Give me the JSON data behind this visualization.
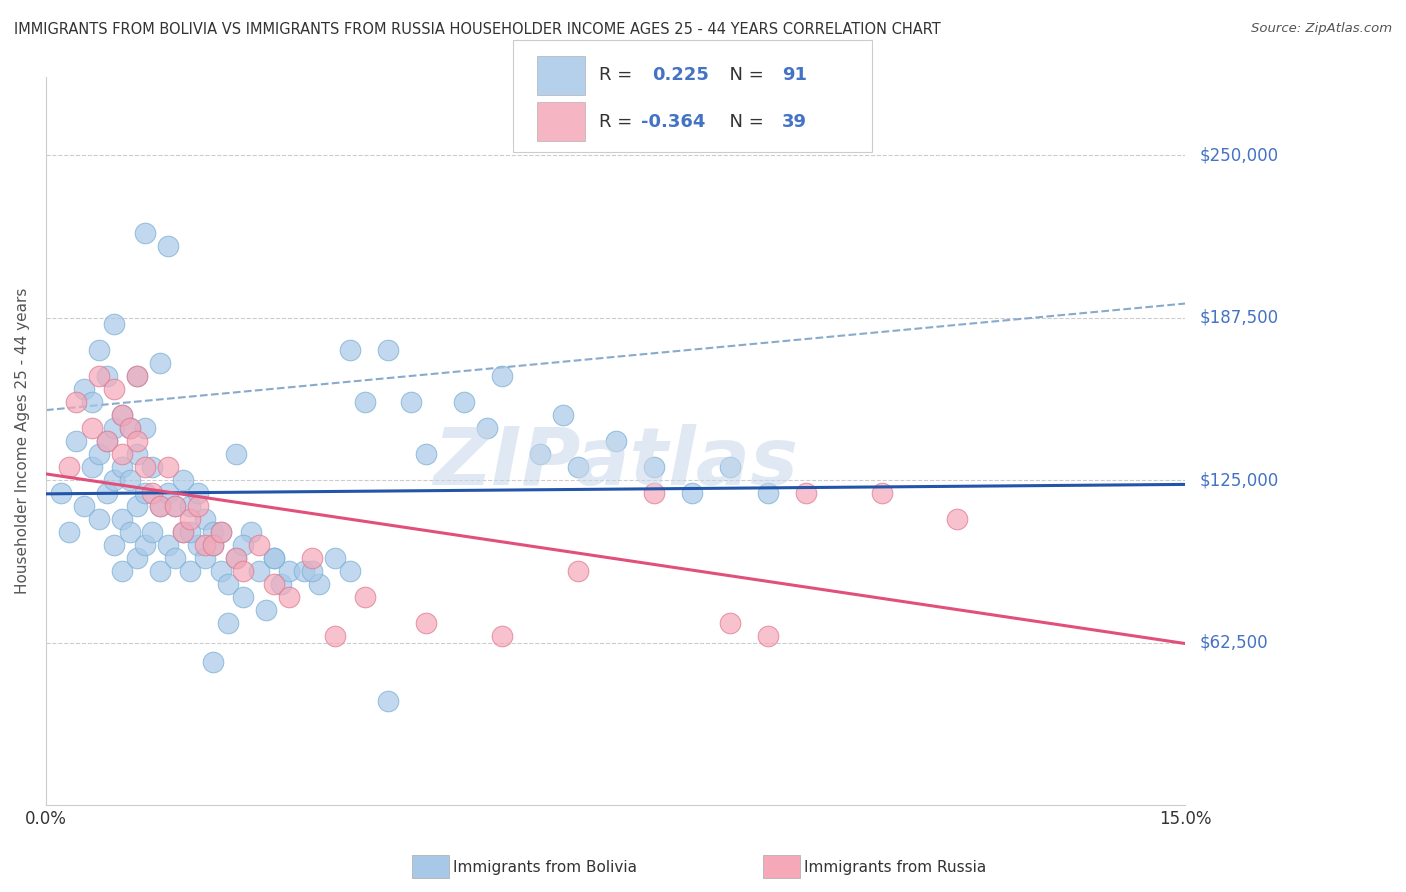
{
  "title": "IMMIGRANTS FROM BOLIVIA VS IMMIGRANTS FROM RUSSIA HOUSEHOLDER INCOME AGES 25 - 44 YEARS CORRELATION CHART",
  "source": "Source: ZipAtlas.com",
  "ylabel": "Householder Income Ages 25 - 44 years",
  "xlim": [
    0.0,
    0.15
  ],
  "ylim": [
    0,
    280000
  ],
  "bolivia_color": "#a8c8e8",
  "bolivia_edge": "#7aafd4",
  "russia_color": "#f4a8b8",
  "russia_edge": "#e07890",
  "reg_bolivia_color": "#2255aa",
  "reg_russia_color": "#e0507a",
  "dash_color": "#88aacc",
  "bolivia_R": 0.225,
  "bolivia_N": 91,
  "russia_R": -0.364,
  "russia_N": 39,
  "xticks": [
    0.0,
    0.03,
    0.06,
    0.09,
    0.12,
    0.15
  ],
  "yticks": [
    0,
    62500,
    125000,
    187500,
    250000
  ],
  "ytick_labels": [
    "",
    "$62,500",
    "$125,000",
    "$187,500",
    "$250,000"
  ],
  "watermark": "ZIPatlas",
  "label_color": "#4472c4",
  "bolivia_x": [
    0.002,
    0.003,
    0.004,
    0.005,
    0.005,
    0.006,
    0.006,
    0.007,
    0.007,
    0.007,
    0.008,
    0.008,
    0.008,
    0.009,
    0.009,
    0.009,
    0.009,
    0.01,
    0.01,
    0.01,
    0.01,
    0.011,
    0.011,
    0.011,
    0.012,
    0.012,
    0.012,
    0.012,
    0.013,
    0.013,
    0.013,
    0.014,
    0.014,
    0.015,
    0.015,
    0.015,
    0.016,
    0.016,
    0.017,
    0.017,
    0.018,
    0.018,
    0.019,
    0.019,
    0.02,
    0.02,
    0.021,
    0.021,
    0.022,
    0.022,
    0.023,
    0.024,
    0.024,
    0.025,
    0.026,
    0.027,
    0.028,
    0.029,
    0.03,
    0.031,
    0.032,
    0.034,
    0.036,
    0.038,
    0.04,
    0.042,
    0.045,
    0.048,
    0.05,
    0.055,
    0.058,
    0.06,
    0.065,
    0.068,
    0.07,
    0.075,
    0.08,
    0.085,
    0.09,
    0.095,
    0.022,
    0.025,
    0.013,
    0.016,
    0.019,
    0.023,
    0.026,
    0.03,
    0.035,
    0.04,
    0.045
  ],
  "bolivia_y": [
    120000,
    105000,
    140000,
    115000,
    160000,
    130000,
    155000,
    110000,
    135000,
    175000,
    120000,
    140000,
    165000,
    100000,
    125000,
    145000,
    185000,
    110000,
    130000,
    150000,
    90000,
    105000,
    125000,
    145000,
    95000,
    115000,
    135000,
    165000,
    100000,
    120000,
    145000,
    105000,
    130000,
    90000,
    115000,
    170000,
    100000,
    120000,
    95000,
    115000,
    105000,
    125000,
    90000,
    115000,
    100000,
    120000,
    95000,
    110000,
    55000,
    100000,
    90000,
    85000,
    70000,
    95000,
    80000,
    105000,
    90000,
    75000,
    95000,
    85000,
    90000,
    90000,
    85000,
    95000,
    175000,
    155000,
    175000,
    155000,
    135000,
    155000,
    145000,
    165000,
    135000,
    150000,
    130000,
    140000,
    130000,
    120000,
    130000,
    120000,
    105000,
    135000,
    220000,
    215000,
    105000,
    105000,
    100000,
    95000,
    90000,
    90000,
    40000
  ],
  "russia_x": [
    0.003,
    0.004,
    0.006,
    0.007,
    0.008,
    0.009,
    0.01,
    0.01,
    0.011,
    0.012,
    0.012,
    0.013,
    0.014,
    0.015,
    0.016,
    0.017,
    0.018,
    0.019,
    0.02,
    0.021,
    0.022,
    0.023,
    0.025,
    0.026,
    0.028,
    0.03,
    0.032,
    0.035,
    0.038,
    0.042,
    0.05,
    0.06,
    0.07,
    0.09,
    0.1,
    0.11,
    0.12,
    0.08,
    0.095
  ],
  "russia_y": [
    130000,
    155000,
    145000,
    165000,
    140000,
    160000,
    150000,
    135000,
    145000,
    140000,
    165000,
    130000,
    120000,
    115000,
    130000,
    115000,
    105000,
    110000,
    115000,
    100000,
    100000,
    105000,
    95000,
    90000,
    100000,
    85000,
    80000,
    95000,
    65000,
    80000,
    70000,
    65000,
    90000,
    70000,
    120000,
    120000,
    110000,
    120000,
    65000
  ]
}
